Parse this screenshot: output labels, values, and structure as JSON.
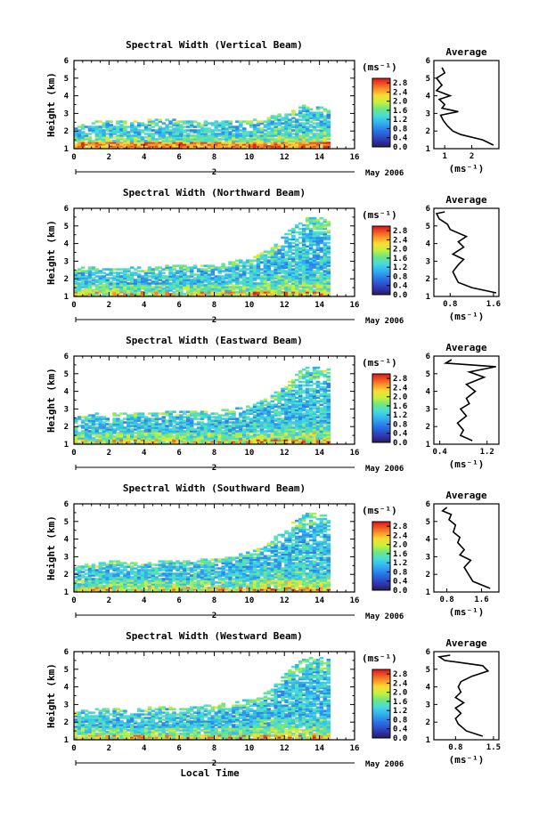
{
  "figure": {
    "date_label": "May 2006",
    "bottom_xlabel": "Local Time",
    "marker_label": "2",
    "cbar_unit": "(ms⁻¹)",
    "avg_xunit": "(ms⁻¹)"
  },
  "chart_data": [
    {
      "type": "heatmap",
      "title": "Spectral Width (Vertical Beam)",
      "xlabel": "",
      "ylabel": "Height (km)",
      "xlim": [
        0,
        16
      ],
      "ylim": [
        1,
        6
      ],
      "xticks": [
        0,
        2,
        4,
        6,
        8,
        10,
        12,
        14,
        16
      ],
      "yticks": [
        1,
        2,
        3,
        4,
        5,
        6
      ],
      "colorbar": {
        "unit": "(ms-1)",
        "ticks": [
          "2.8",
          "2.4",
          "2.0",
          "1.6",
          "1.2",
          "0.8",
          "0.4",
          "0.0"
        ],
        "range": [
          0.0,
          3.0
        ]
      },
      "coverage": {
        "t_end": 14.5,
        "top_profile": [
          [
            0,
            2.3
          ],
          [
            1,
            2.5
          ],
          [
            2,
            2.6
          ],
          [
            3,
            2.5
          ],
          [
            4,
            2.6
          ],
          [
            5,
            2.7
          ],
          [
            6,
            2.6
          ],
          [
            7,
            2.5
          ],
          [
            8,
            2.6
          ],
          [
            9,
            2.5
          ],
          [
            10,
            2.6
          ],
          [
            11,
            2.8
          ],
          [
            12,
            3.0
          ],
          [
            13,
            3.5
          ],
          [
            14,
            3.4
          ],
          [
            14.5,
            3.2
          ]
        ]
      },
      "average_profile": {
        "title": "Average",
        "xlim": [
          0.6,
          3.0
        ],
        "xticks": [
          "1",
          "2"
        ],
        "xtick_vals": [
          1.0,
          2.0
        ],
        "heights": [
          1.2,
          1.5,
          1.8,
          2.0,
          2.3,
          2.6,
          2.9,
          3.1,
          3.3,
          3.5,
          3.8,
          4.0,
          4.3,
          4.6,
          5.0,
          5.3,
          5.6
        ],
        "values": [
          2.8,
          2.4,
          1.6,
          1.3,
          1.1,
          0.95,
          0.85,
          1.5,
          0.9,
          1.0,
          0.8,
          1.2,
          0.7,
          0.9,
          0.7,
          1.0,
          0.9
        ]
      }
    },
    {
      "type": "heatmap",
      "title": "Spectral Width (Northward Beam)",
      "xlabel": "",
      "ylabel": "Height (km)",
      "xlim": [
        0,
        16
      ],
      "ylim": [
        1,
        6
      ],
      "xticks": [
        0,
        2,
        4,
        6,
        8,
        10,
        12,
        14,
        16
      ],
      "yticks": [
        1,
        2,
        3,
        4,
        5,
        6
      ],
      "colorbar": {
        "unit": "(ms-1)",
        "ticks": [
          "2.8",
          "2.4",
          "2.0",
          "1.6",
          "1.2",
          "0.8",
          "0.4",
          "0.0"
        ],
        "range": [
          0.0,
          3.0
        ]
      },
      "coverage": {
        "t_end": 14.5,
        "top_profile": [
          [
            0,
            2.6
          ],
          [
            1,
            2.7
          ],
          [
            2,
            2.6
          ],
          [
            3,
            2.7
          ],
          [
            4,
            2.6
          ],
          [
            5,
            2.7
          ],
          [
            6,
            2.8
          ],
          [
            7,
            2.7
          ],
          [
            8,
            2.8
          ],
          [
            9,
            3.0
          ],
          [
            10,
            3.2
          ],
          [
            11,
            3.6
          ],
          [
            12,
            4.6
          ],
          [
            13,
            5.4
          ],
          [
            14,
            5.4
          ],
          [
            14.5,
            5.3
          ]
        ]
      },
      "average_profile": {
        "title": "Average",
        "xlim": [
          0.5,
          1.7
        ],
        "xticks": [
          "0.8",
          "1.6"
        ],
        "xtick_vals": [
          0.8,
          1.6
        ],
        "heights": [
          1.2,
          1.5,
          1.8,
          2.1,
          2.4,
          2.8,
          3.1,
          3.4,
          3.8,
          4.1,
          4.4,
          4.8,
          5.1,
          5.4,
          5.7,
          5.8
        ],
        "values": [
          1.65,
          1.2,
          0.95,
          0.9,
          0.85,
          0.95,
          1.05,
          0.85,
          1.05,
          0.95,
          1.1,
          0.8,
          0.75,
          0.6,
          0.55,
          0.7
        ]
      }
    },
    {
      "type": "heatmap",
      "title": "Spectral Width (Eastward Beam)",
      "xlabel": "",
      "ylabel": "Height (km)",
      "xlim": [
        0,
        16
      ],
      "ylim": [
        1,
        6
      ],
      "xticks": [
        0,
        2,
        4,
        6,
        8,
        10,
        12,
        14,
        16
      ],
      "yticks": [
        1,
        2,
        3,
        4,
        5,
        6
      ],
      "colorbar": {
        "unit": "(ms-1)",
        "ticks": [
          "2.8",
          "2.4",
          "2.0",
          "1.6",
          "1.2",
          "0.8",
          "0.4",
          "0.0"
        ],
        "range": [
          0.0,
          3.0
        ]
      },
      "coverage": {
        "t_end": 14.5,
        "top_profile": [
          [
            0,
            2.5
          ],
          [
            1,
            2.7
          ],
          [
            2,
            2.8
          ],
          [
            3,
            2.7
          ],
          [
            4,
            2.8
          ],
          [
            5,
            2.8
          ],
          [
            6,
            2.9
          ],
          [
            7,
            2.8
          ],
          [
            8,
            2.9
          ],
          [
            9,
            3.0
          ],
          [
            10,
            3.2
          ],
          [
            11,
            3.6
          ],
          [
            12,
            4.4
          ],
          [
            13,
            5.3
          ],
          [
            14,
            5.3
          ],
          [
            14.5,
            5.2
          ]
        ]
      },
      "average_profile": {
        "title": "Average",
        "xlim": [
          0.3,
          1.4
        ],
        "xticks": [
          "0.4",
          "1.2"
        ],
        "xtick_vals": [
          0.4,
          1.2
        ],
        "heights": [
          1.2,
          1.5,
          1.8,
          2.2,
          2.6,
          3.0,
          3.3,
          3.6,
          4.0,
          4.4,
          4.8,
          5.1,
          5.4,
          5.6,
          5.8
        ],
        "values": [
          0.95,
          0.75,
          0.8,
          0.7,
          0.85,
          0.75,
          0.9,
          0.85,
          1.0,
          0.85,
          1.15,
          0.9,
          1.35,
          0.5,
          0.6
        ]
      }
    },
    {
      "type": "heatmap",
      "title": "Spectral Width (Southward Beam)",
      "xlabel": "",
      "ylabel": "Height (km)",
      "xlim": [
        0,
        16
      ],
      "ylim": [
        1,
        6
      ],
      "xticks": [
        0,
        2,
        4,
        6,
        8,
        10,
        12,
        14,
        16
      ],
      "yticks": [
        1,
        2,
        3,
        4,
        5,
        6
      ],
      "colorbar": {
        "unit": "(ms-1)",
        "ticks": [
          "2.8",
          "2.4",
          "2.0",
          "1.6",
          "1.2",
          "0.8",
          "0.4",
          "0.0"
        ],
        "range": [
          0.0,
          3.0
        ]
      },
      "coverage": {
        "t_end": 14.5,
        "top_profile": [
          [
            0,
            2.4
          ],
          [
            1,
            2.6
          ],
          [
            2,
            2.8
          ],
          [
            3,
            2.6
          ],
          [
            4,
            2.7
          ],
          [
            5,
            2.8
          ],
          [
            6,
            2.7
          ],
          [
            7,
            2.8
          ],
          [
            8,
            2.9
          ],
          [
            9,
            3.0
          ],
          [
            10,
            3.3
          ],
          [
            11,
            3.8
          ],
          [
            12,
            4.6
          ],
          [
            13,
            5.4
          ],
          [
            14,
            5.4
          ],
          [
            14.5,
            5.3
          ]
        ]
      },
      "average_profile": {
        "title": "Average",
        "xlim": [
          0.5,
          2.0
        ],
        "xticks": [
          "0.8",
          "1.6"
        ],
        "xtick_vals": [
          0.8,
          1.6
        ],
        "heights": [
          1.2,
          1.6,
          2.0,
          2.4,
          2.8,
          3.1,
          3.4,
          3.8,
          4.1,
          4.4,
          4.8,
          5.1,
          5.4,
          5.6,
          5.8
        ],
        "values": [
          1.8,
          1.4,
          1.3,
          1.2,
          1.35,
          1.1,
          1.2,
          1.05,
          1.1,
          0.95,
          1.0,
          0.85,
          0.9,
          0.7,
          0.8
        ]
      }
    },
    {
      "type": "heatmap",
      "title": "Spectral Width (Westward Beam)",
      "xlabel": "Local Time",
      "ylabel": "Height (km)",
      "xlim": [
        0,
        16
      ],
      "ylim": [
        1,
        6
      ],
      "xticks": [
        0,
        2,
        4,
        6,
        8,
        10,
        12,
        14,
        16
      ],
      "yticks": [
        1,
        2,
        3,
        4,
        5,
        6
      ],
      "colorbar": {
        "unit": "(ms-1)",
        "ticks": [
          "2.8",
          "2.4",
          "2.0",
          "1.6",
          "1.2",
          "0.8",
          "0.4",
          "0.0"
        ],
        "range": [
          0.0,
          3.0
        ]
      },
      "coverage": {
        "t_end": 14.5,
        "top_profile": [
          [
            0,
            2.6
          ],
          [
            1,
            2.7
          ],
          [
            2,
            2.8
          ],
          [
            3,
            2.7
          ],
          [
            4,
            2.8
          ],
          [
            5,
            2.9
          ],
          [
            6,
            2.8
          ],
          [
            7,
            2.9
          ],
          [
            8,
            3.0
          ],
          [
            9,
            3.1
          ],
          [
            10,
            3.3
          ],
          [
            11,
            3.8
          ],
          [
            12,
            4.8
          ],
          [
            13,
            5.6
          ],
          [
            14,
            5.6
          ],
          [
            14.5,
            5.5
          ]
        ]
      },
      "average_profile": {
        "title": "Average",
        "xlim": [
          0.4,
          1.6
        ],
        "xticks": [
          "0.8",
          "1.5"
        ],
        "xtick_vals": [
          0.8,
          1.5
        ],
        "heights": [
          1.2,
          1.5,
          1.9,
          2.2,
          2.5,
          2.8,
          3.1,
          3.4,
          3.7,
          4.0,
          4.3,
          4.6,
          4.9,
          5.2,
          5.5,
          5.7,
          5.8
        ],
        "values": [
          1.3,
          1.0,
          0.85,
          0.8,
          0.9,
          0.8,
          0.95,
          0.8,
          0.9,
          0.85,
          0.9,
          1.1,
          1.4,
          1.3,
          0.6,
          0.5,
          0.7
        ]
      }
    }
  ]
}
